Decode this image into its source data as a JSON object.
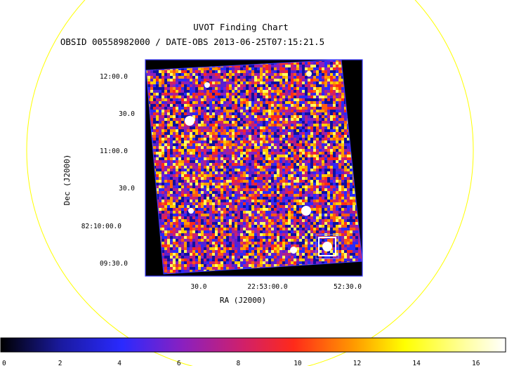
{
  "title": "UVOT Finding Chart",
  "subtitle": "OBSID 00558982000 / DATE-OBS 2013-06-25T07:15:21.5",
  "axes": {
    "y_label": "Dec (J2000)",
    "x_label": "RA (J2000)",
    "y_ticks": [
      "12:00.0",
      "30.0",
      "11:00.0",
      "30.0",
      "82:10:00.0",
      "09:30.0"
    ],
    "x_ticks": [
      "30.0",
      "22:53:00.0",
      "52:30.0"
    ]
  },
  "colorbar": {
    "ticks": [
      "0",
      "2",
      "4",
      "6",
      "8",
      "10",
      "12",
      "14",
      "16"
    ],
    "range": [
      0,
      17
    ]
  },
  "colors": {
    "circle": "#ffff00",
    "frame": "#3a3aff",
    "background": "#000000"
  }
}
